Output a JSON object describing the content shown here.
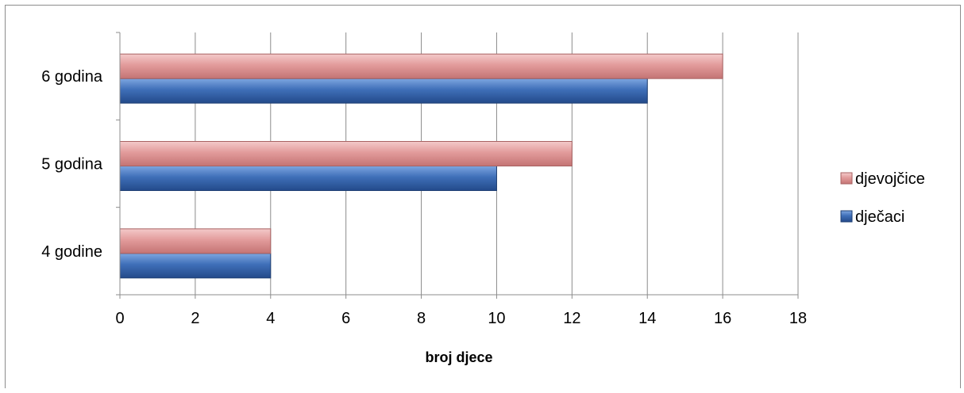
{
  "chart_data": {
    "type": "bar",
    "orientation": "horizontal",
    "categories": [
      "4 godine",
      "5 godina",
      "6 godina"
    ],
    "series": [
      {
        "name": "dječaci",
        "values": [
          4,
          10,
          14
        ],
        "color": "#3f6fb8"
      },
      {
        "name": "djevojčice",
        "values": [
          4,
          12,
          16
        ],
        "color": "#e29b9b"
      }
    ],
    "title": "",
    "xlabel": "broj djece",
    "ylabel": "",
    "xlim": [
      0,
      18
    ],
    "x_ticks": [
      0,
      2,
      4,
      6,
      8,
      10,
      12,
      14,
      16,
      18
    ],
    "grid": "vertical",
    "legend_position": "right"
  }
}
